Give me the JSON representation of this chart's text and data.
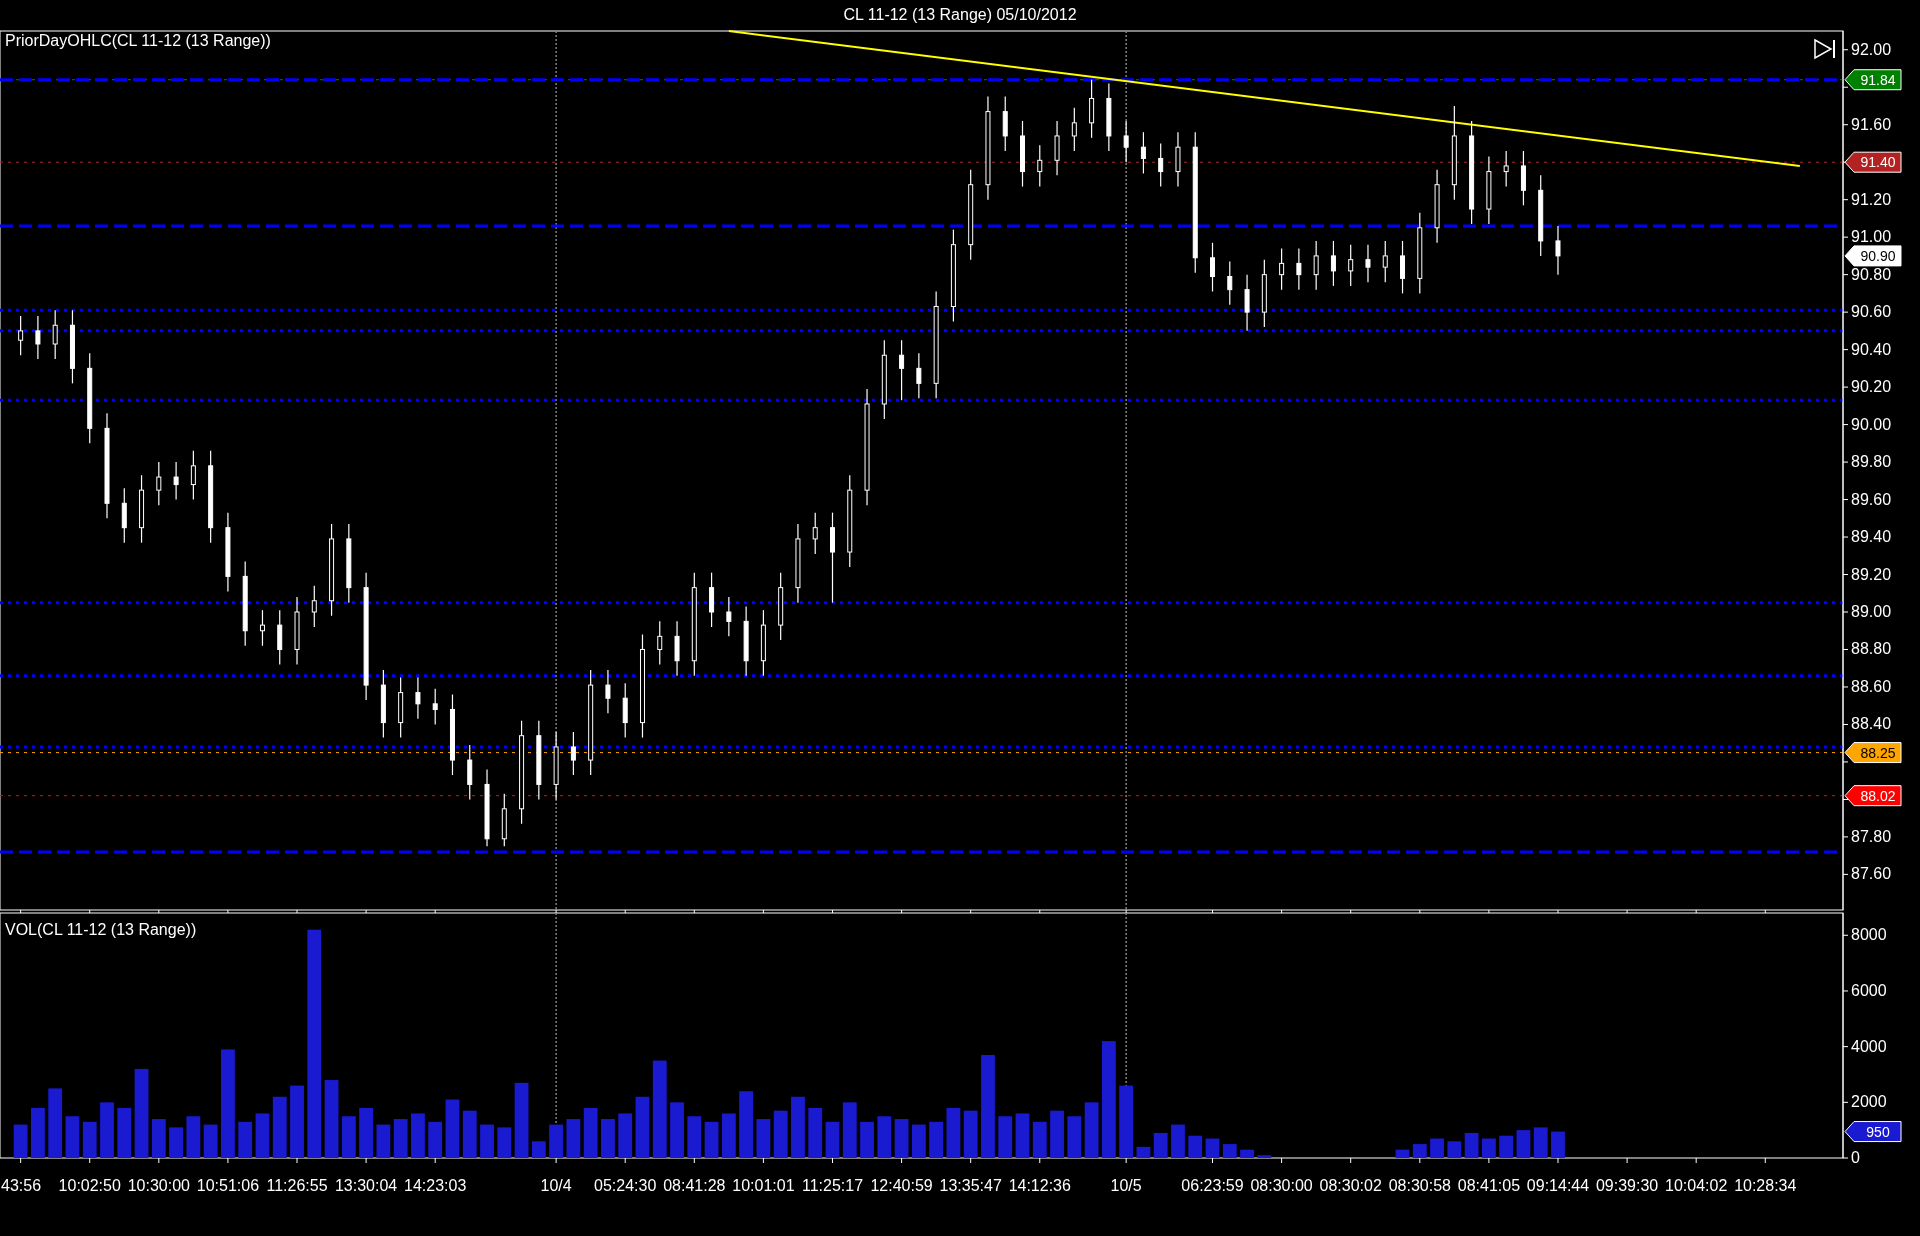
{
  "chart_data": [
    {
      "type": "candlestick",
      "title": "CL 11-12 (13 Range)  05/10/2012",
      "subtitle": "PriorDayOHLC(CL 11-12 (13 Range))",
      "color": "#ffffff",
      "tick_labels": "y",
      "categories": [
        "43:56",
        null,
        null,
        null,
        "10:02:50",
        null,
        null,
        null,
        "10:30:00",
        null,
        null,
        null,
        "10:51:06",
        null,
        null,
        null,
        "11:26:55",
        null,
        null,
        null,
        "13:30:04",
        null,
        null,
        null,
        "14:23:03",
        null,
        null,
        null,
        null,
        null,
        null,
        "10/4",
        null,
        null,
        null,
        "05:24:30",
        null,
        null,
        null,
        "08:41:28",
        null,
        null,
        null,
        "10:01:01",
        null,
        null,
        null,
        "11:25:17",
        null,
        null,
        null,
        "12:40:59",
        null,
        null,
        null,
        "13:35:47",
        null,
        null,
        null,
        "14:12:36",
        null,
        null,
        null,
        null,
        "10/5",
        null,
        null,
        null,
        null,
        "06:23:59",
        null,
        null,
        null,
        "08:30:00",
        null,
        null,
        null,
        "08:30:02",
        null,
        null,
        null,
        "08:30:58",
        null,
        null,
        null,
        "08:41:05",
        null,
        null,
        null,
        "09:14:44",
        null,
        null,
        null,
        "09:39:30",
        null,
        null,
        null,
        "10:04:02",
        null,
        null,
        null,
        "10:28:34",
        null,
        null,
        null,
        null
      ],
      "ohlc": [
        [
          90.45,
          90.58,
          90.37,
          90.5
        ],
        [
          90.5,
          90.58,
          90.35,
          90.43
        ],
        [
          90.43,
          90.61,
          90.35,
          90.53
        ],
        [
          90.53,
          90.61,
          90.22,
          90.3
        ],
        [
          90.3,
          90.38,
          89.9,
          89.98
        ],
        [
          89.98,
          90.06,
          89.5,
          89.58
        ],
        [
          89.58,
          89.66,
          89.37,
          89.45
        ],
        [
          89.45,
          89.73,
          89.37,
          89.65
        ],
        [
          89.65,
          89.8,
          89.57,
          89.72
        ],
        [
          89.72,
          89.8,
          89.6,
          89.68
        ],
        [
          89.68,
          89.86,
          89.6,
          89.78
        ],
        [
          89.78,
          89.86,
          89.37,
          89.45
        ],
        [
          89.45,
          89.53,
          89.11,
          89.19
        ],
        [
          89.19,
          89.27,
          88.82,
          88.9
        ],
        [
          88.9,
          89.01,
          88.82,
          88.93
        ],
        [
          88.93,
          89.01,
          88.72,
          88.8
        ],
        [
          88.8,
          89.08,
          88.72,
          89.0
        ],
        [
          89.0,
          89.14,
          88.92,
          89.06
        ],
        [
          89.06,
          89.47,
          88.98,
          89.39
        ],
        [
          89.39,
          89.47,
          89.05,
          89.13
        ],
        [
          89.13,
          89.21,
          88.53,
          88.61
        ],
        [
          88.61,
          88.69,
          88.33,
          88.41
        ],
        [
          88.41,
          88.65,
          88.33,
          88.57
        ],
        [
          88.57,
          88.65,
          88.43,
          88.51
        ],
        [
          88.51,
          88.59,
          88.4,
          88.48
        ],
        [
          88.48,
          88.56,
          88.13,
          88.21
        ],
        [
          88.21,
          88.29,
          88.0,
          88.08
        ],
        [
          88.08,
          88.16,
          87.75,
          87.79
        ],
        [
          87.79,
          88.03,
          87.75,
          87.95
        ],
        [
          87.95,
          88.42,
          87.87,
          88.34
        ],
        [
          88.34,
          88.42,
          88.0,
          88.08
        ],
        [
          88.08,
          88.36,
          88.0,
          88.28
        ],
        [
          88.28,
          88.36,
          88.13,
          88.21
        ],
        [
          88.21,
          88.69,
          88.13,
          88.61
        ],
        [
          88.61,
          88.69,
          88.46,
          88.54
        ],
        [
          88.54,
          88.62,
          88.33,
          88.41
        ],
        [
          88.41,
          88.88,
          88.33,
          88.8
        ],
        [
          88.8,
          88.95,
          88.72,
          88.87
        ],
        [
          88.87,
          88.95,
          88.66,
          88.74
        ],
        [
          88.74,
          89.21,
          88.66,
          89.13
        ],
        [
          89.13,
          89.21,
          88.92,
          89.0
        ],
        [
          89.0,
          89.08,
          88.87,
          88.95
        ],
        [
          88.95,
          89.03,
          88.66,
          88.74
        ],
        [
          88.74,
          89.01,
          88.66,
          88.93
        ],
        [
          88.93,
          89.21,
          88.85,
          89.13
        ],
        [
          89.13,
          89.47,
          89.05,
          89.39
        ],
        [
          89.39,
          89.53,
          89.31,
          89.45
        ],
        [
          89.45,
          89.53,
          89.05,
          89.32
        ],
        [
          89.32,
          89.73,
          89.24,
          89.65
        ],
        [
          89.65,
          90.19,
          89.57,
          90.11
        ],
        [
          90.11,
          90.45,
          90.03,
          90.37
        ],
        [
          90.37,
          90.45,
          90.13,
          90.3
        ],
        [
          90.3,
          90.38,
          90.14,
          90.22
        ],
        [
          90.22,
          90.71,
          90.14,
          90.63
        ],
        [
          90.63,
          91.04,
          90.55,
          90.96
        ],
        [
          90.96,
          91.36,
          90.88,
          91.28
        ],
        [
          91.28,
          91.75,
          91.2,
          91.67
        ],
        [
          91.67,
          91.75,
          91.46,
          91.54
        ],
        [
          91.54,
          91.62,
          91.27,
          91.35
        ],
        [
          91.35,
          91.49,
          91.27,
          91.41
        ],
        [
          91.41,
          91.62,
          91.33,
          91.54
        ],
        [
          91.54,
          91.69,
          91.46,
          91.61
        ],
        [
          91.61,
          91.84,
          91.53,
          91.74
        ],
        [
          91.74,
          91.82,
          91.46,
          91.54
        ],
        [
          91.54,
          91.62,
          91.4,
          91.48
        ],
        [
          91.48,
          91.56,
          91.34,
          91.42
        ],
        [
          91.42,
          91.5,
          91.27,
          91.35
        ],
        [
          91.35,
          91.56,
          91.27,
          91.48
        ],
        [
          91.48,
          91.56,
          90.81,
          90.89
        ],
        [
          90.89,
          90.97,
          90.71,
          90.79
        ],
        [
          90.79,
          90.87,
          90.64,
          90.72
        ],
        [
          90.72,
          90.8,
          90.5,
          90.6
        ],
        [
          90.6,
          90.88,
          90.52,
          90.8
        ],
        [
          90.8,
          90.94,
          90.72,
          90.86
        ],
        [
          90.86,
          90.94,
          90.72,
          90.8
        ],
        [
          90.8,
          90.98,
          90.72,
          90.9
        ],
        [
          90.9,
          90.98,
          90.74,
          90.82
        ],
        [
          90.82,
          90.96,
          90.74,
          90.88
        ],
        [
          90.88,
          90.96,
          90.76,
          90.84
        ],
        [
          90.84,
          90.98,
          90.76,
          90.9
        ],
        [
          90.9,
          90.98,
          90.7,
          90.78
        ],
        [
          90.78,
          91.13,
          90.7,
          91.05
        ],
        [
          91.05,
          91.36,
          90.97,
          91.28
        ],
        [
          91.28,
          91.7,
          91.2,
          91.54
        ],
        [
          91.54,
          91.62,
          91.07,
          91.15
        ],
        [
          91.15,
          91.43,
          91.07,
          91.35
        ],
        [
          91.35,
          91.46,
          91.27,
          91.38
        ],
        [
          91.38,
          91.46,
          91.17,
          91.25
        ],
        [
          91.25,
          91.33,
          90.9,
          90.98
        ],
        [
          90.98,
          91.06,
          90.8,
          90.9
        ],
        null,
        null,
        null,
        null,
        null,
        null,
        null,
        null,
        null,
        null,
        null,
        null,
        null,
        null,
        null,
        null
      ],
      "series": [
        {
          "type": "line",
          "color": "#ffff00",
          "values": [
            null,
            null,
            null,
            null,
            null,
            null,
            null,
            null,
            null,
            null,
            null,
            null,
            null,
            null,
            null,
            null,
            null,
            null,
            null,
            null,
            null,
            null,
            null,
            null,
            null,
            null,
            null,
            null,
            null,
            null,
            null,
            null,
            null,
            null,
            null,
            null,
            null,
            null,
            null,
            null,
            null,
            92.1,
            null,
            null,
            null,
            null,
            null,
            null,
            null,
            null,
            null,
            null,
            null,
            null,
            null,
            null,
            null,
            null,
            null,
            null,
            null,
            null,
            null,
            null,
            null,
            null,
            null,
            null,
            null,
            null,
            null,
            null,
            null,
            null,
            null,
            null,
            null,
            null,
            null,
            null,
            null,
            null,
            null,
            null,
            null,
            null,
            null,
            null,
            null,
            null,
            null,
            null,
            null,
            null,
            null,
            null,
            null,
            null,
            null,
            null,
            null,
            null,
            null,
            91.38,
            null,
            null
          ]
        }
      ],
      "ylim": [
        87.41,
        92.1
      ],
      "yticks": [
        {
          "value": 87.6,
          "label": "87.60"
        },
        {
          "value": 87.8,
          "label": "87.80"
        },
        {
          "value": 88,
          "label": null
        },
        {
          "value": 88.2,
          "label": null
        },
        {
          "value": 88.4,
          "label": "88.40"
        },
        {
          "value": 88.6,
          "label": "88.60"
        },
        {
          "value": 88.8,
          "label": "88.80"
        },
        {
          "value": 89,
          "label": "89.00"
        },
        {
          "value": 89.2,
          "label": "89.20"
        },
        {
          "value": 89.4,
          "label": "89.40"
        },
        {
          "value": 89.6,
          "label": "89.60"
        },
        {
          "value": 89.8,
          "label": "89.80"
        },
        {
          "value": 90,
          "label": "90.00"
        },
        {
          "value": 90.2,
          "label": "90.20"
        },
        {
          "value": 90.4,
          "label": "90.40"
        },
        {
          "value": 90.6,
          "label": "90.60"
        },
        {
          "value": 90.8,
          "label": "90.80"
        },
        {
          "value": 91,
          "label": "91.00"
        },
        {
          "value": 91.2,
          "label": "91.20"
        },
        {
          "value": 91.4,
          "label": null
        },
        {
          "value": 91.6,
          "label": "91.60"
        },
        {
          "value": 91.8,
          "label": null
        },
        {
          "value": 92,
          "label": "92.00"
        }
      ],
      "ref_lines": [
        {
          "axis": "x",
          "value": "10/4",
          "color": "#808080",
          "line_style": "dotted"
        },
        {
          "axis": "x",
          "value": "10/5",
          "color": "#808080",
          "line_style": "dotted"
        },
        {
          "axis": "y",
          "value": 91.84,
          "label": "91.84",
          "color": "#008000",
          "line_style": "dotted"
        },
        {
          "axis": "y",
          "value": 91.84,
          "color": "#0000ff",
          "line_style": "dashed"
        },
        {
          "axis": "y",
          "value": 91.4,
          "label": "91.40",
          "color": "#b22222",
          "line_style": "dotted"
        },
        {
          "axis": "y",
          "value": 91.06,
          "color": "#0000ff",
          "line_style": "dashed"
        },
        {
          "axis": "y",
          "value": 90.61,
          "color": "#0000ff",
          "line_style": "dotted"
        },
        {
          "axis": "y",
          "value": 90.5,
          "color": "#0000ff",
          "line_style": "dotted"
        },
        {
          "axis": "y",
          "value": 90.13,
          "color": "#0000ff",
          "line_style": "dotted"
        },
        {
          "axis": "y",
          "value": 89.05,
          "color": "#0000ff",
          "line_style": "dotted"
        },
        {
          "axis": "y",
          "value": 88.66,
          "color": "#0000ff",
          "line_style": "dotted"
        },
        {
          "axis": "y",
          "value": 88.28,
          "color": "#0000ff",
          "line_style": "dotted"
        },
        {
          "axis": "y",
          "value": 88.25,
          "label": "88.25",
          "color": "#ffa500",
          "line_style": "dotted"
        },
        {
          "axis": "y",
          "value": 88.02,
          "label": "88.02",
          "color": "#ff0000",
          "line_style": "dotted"
        },
        {
          "axis": "y",
          "value": 87.72,
          "color": "#0000ff",
          "line_style": "dashed"
        }
      ],
      "annotations": [
        "90.90"
      ]
    },
    {
      "type": "bar",
      "title": "VOL(CL 11-12 (13 Range))",
      "color": "#1a1ad0",
      "categories": [
        "43:56",
        null,
        null,
        null,
        "10:02:50",
        null,
        null,
        null,
        "10:30:00",
        null,
        null,
        null,
        "10:51:06",
        null,
        null,
        null,
        "11:26:55",
        null,
        null,
        null,
        "13:30:04",
        null,
        null,
        null,
        "14:23:03",
        null,
        null,
        null,
        null,
        null,
        null,
        "10/4",
        null,
        null,
        null,
        "05:24:30",
        null,
        null,
        null,
        "08:41:28",
        null,
        null,
        null,
        "10:01:01",
        null,
        null,
        null,
        "11:25:17",
        null,
        null,
        null,
        "12:40:59",
        null,
        null,
        null,
        "13:35:47",
        null,
        null,
        null,
        "14:12:36",
        null,
        null,
        null,
        null,
        "10/5",
        null,
        null,
        null,
        null,
        "06:23:59",
        null,
        null,
        null,
        "08:30:00",
        null,
        null,
        null,
        "08:30:02",
        null,
        null,
        null,
        "08:30:58",
        null,
        null,
        null,
        "08:41:05",
        null,
        null,
        null,
        "09:14:44",
        null,
        null,
        null,
        "09:39:30",
        null,
        null,
        null,
        "10:04:02",
        null,
        null,
        null,
        "10:28:34",
        null,
        null,
        null,
        null
      ],
      "values": [
        1200,
        1800,
        2500,
        1500,
        1300,
        2000,
        1800,
        3200,
        1400,
        1100,
        1500,
        1200,
        3900,
        1300,
        1600,
        2200,
        2600,
        8200,
        2800,
        1500,
        1800,
        1200,
        1400,
        1600,
        1300,
        2100,
        1700,
        1200,
        1100,
        2700,
        600,
        1200,
        1400,
        1800,
        1400,
        1600,
        2200,
        3500,
        2000,
        1500,
        1300,
        1600,
        2400,
        1400,
        1700,
        2200,
        1800,
        1300,
        2000,
        1300,
        1500,
        1400,
        1200,
        1300,
        1800,
        1700,
        3700,
        1500,
        1600,
        1300,
        1700,
        1500,
        2000,
        4200,
        2600,
        400,
        900,
        1200,
        800,
        700,
        500,
        300,
        100,
        0,
        0,
        0,
        0,
        0,
        0,
        0,
        300,
        500,
        700,
        600,
        900,
        700,
        800,
        1000,
        1100,
        950,
        null,
        null,
        null,
        null,
        null,
        null,
        null,
        null,
        null,
        null,
        null,
        null,
        null,
        null,
        null,
        null
      ],
      "ylim": [
        0,
        8800
      ],
      "yticks": [
        0,
        2000,
        4000,
        6000,
        8000
      ],
      "ref_lines": [
        {
          "axis": "x",
          "value": "10/4",
          "color": "#808080",
          "line_style": "dotted"
        },
        {
          "axis": "x",
          "value": "10/5",
          "color": "#808080",
          "line_style": "dotted"
        }
      ],
      "annotations": [
        "950"
      ]
    }
  ]
}
